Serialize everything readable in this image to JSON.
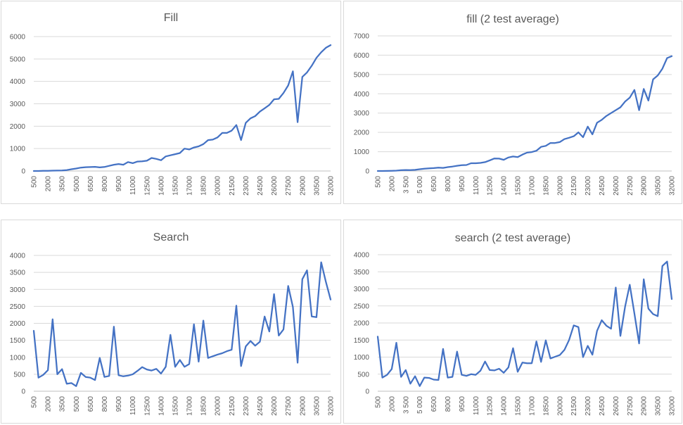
{
  "chart_data": [
    {
      "type": "line",
      "title": "Fill",
      "xlabel": "",
      "ylabel": "",
      "ylim": [
        0,
        6000
      ],
      "yticks": [
        0,
        1000,
        2000,
        3000,
        4000,
        5000,
        6000
      ],
      "ytick_labels": [
        "0",
        "1000",
        "2000",
        "3000",
        "4000",
        "5000",
        "6000"
      ],
      "xtick_labels": [
        "500",
        "2000",
        "3500",
        "5000",
        "6500",
        "8000",
        "9500",
        "11000",
        "12500",
        "14000",
        "15500",
        "17000",
        "18500",
        "20000",
        "21500",
        "23000",
        "24500",
        "26000",
        "27500",
        "29000",
        "30500",
        "32000"
      ],
      "x_start": 500,
      "x_step": 500,
      "grid": true,
      "legend": "none",
      "color": "#4472C4",
      "series": [
        {
          "values": [
            0,
            0,
            5,
            10,
            15,
            20,
            25,
            40,
            80,
            110,
            150,
            170,
            175,
            185,
            160,
            180,
            230,
            280,
            310,
            280,
            400,
            350,
            420,
            430,
            460,
            580,
            540,
            480,
            650,
            700,
            750,
            800,
            1000,
            960,
            1050,
            1100,
            1200,
            1380,
            1400,
            1500,
            1700,
            1700,
            1800,
            2050,
            1380,
            2150,
            2350,
            2450,
            2650,
            2800,
            2950,
            3200,
            3220,
            3480,
            3820,
            4450,
            2180,
            4200,
            4400,
            4700,
            5050,
            5300,
            5500,
            5620
          ]
        }
      ]
    },
    {
      "type": "line",
      "title": "fill (2 test average)",
      "xlabel": "",
      "ylabel": "",
      "ylim": [
        0,
        7000
      ],
      "yticks": [
        0,
        1000,
        2000,
        3000,
        4000,
        5000,
        6000,
        7000
      ],
      "ytick_labels": [
        "0",
        "1000",
        "2000",
        "3000",
        "4000",
        "5000",
        "6000",
        "7000"
      ],
      "xtick_labels": [
        "500",
        "2000",
        "3 500",
        "5 000",
        "6500",
        "8000",
        "9500",
        "11000",
        "12500",
        "14000",
        "15500",
        "17000",
        "18500",
        "20000",
        "21500",
        "23000",
        "24500",
        "26000",
        "27500",
        "29000",
        "30500",
        "32000"
      ],
      "x_start": 500,
      "x_step": 500,
      "grid": true,
      "legend": "none",
      "color": "#4472C4",
      "series": [
        {
          "values": [
            0,
            0,
            5,
            10,
            20,
            40,
            50,
            45,
            60,
            90,
            120,
            140,
            150,
            170,
            160,
            200,
            230,
            270,
            300,
            310,
            400,
            400,
            420,
            460,
            550,
            650,
            640,
            580,
            700,
            750,
            720,
            850,
            950,
            980,
            1050,
            1250,
            1300,
            1450,
            1450,
            1500,
            1650,
            1720,
            1800,
            2000,
            1750,
            2300,
            1900,
            2500,
            2650,
            2850,
            3000,
            3150,
            3300,
            3600,
            3800,
            4200,
            3150,
            4250,
            3650,
            4750,
            4950,
            5300,
            5850,
            5950
          ]
        }
      ]
    },
    {
      "type": "line",
      "title": "Search",
      "xlabel": "",
      "ylabel": "",
      "ylim": [
        0,
        4000
      ],
      "yticks": [
        0,
        500,
        1000,
        1500,
        2000,
        2500,
        3000,
        3500,
        4000
      ],
      "ytick_labels": [
        "0",
        "500",
        "1000",
        "1500",
        "2000",
        "2500",
        "3000",
        "3500",
        "4000"
      ],
      "xtick_labels": [
        "500",
        "2000",
        "3500",
        "5000",
        "6500",
        "8000",
        "9500",
        "11000",
        "12500",
        "14000",
        "15500",
        "17000",
        "18500",
        "20000",
        "21500",
        "23000",
        "24500",
        "26000",
        "27500",
        "29000",
        "30500",
        "32000"
      ],
      "x_start": 500,
      "x_step": 500,
      "grid": true,
      "legend": "none",
      "color": "#4472C4",
      "series": [
        {
          "values": [
            1780,
            400,
            480,
            620,
            2120,
            500,
            650,
            220,
            240,
            150,
            540,
            420,
            400,
            330,
            980,
            420,
            450,
            1900,
            470,
            440,
            460,
            500,
            600,
            710,
            640,
            610,
            660,
            520,
            720,
            1660,
            720,
            920,
            720,
            800,
            1970,
            870,
            2080,
            980,
            1030,
            1080,
            1120,
            1180,
            1220,
            2520,
            740,
            1320,
            1480,
            1340,
            1460,
            2200,
            1760,
            2860,
            1640,
            1820,
            3100,
            2480,
            840,
            3300,
            3560,
            2200,
            2180,
            3800,
            3220,
            2700
          ]
        }
      ]
    },
    {
      "type": "line",
      "title": "search (2 test average)",
      "xlabel": "",
      "ylabel": "",
      "ylim": [
        0,
        4000
      ],
      "yticks": [
        0,
        500,
        1000,
        1500,
        2000,
        2500,
        3000,
        3500,
        4000
      ],
      "ytick_labels": [
        "0",
        "500",
        "1000",
        "1500",
        "2000",
        "2500",
        "3000",
        "3500",
        "4000"
      ],
      "xtick_labels": [
        "500",
        "2000",
        "3 500",
        "5 000",
        "6500",
        "8000",
        "9500",
        "11000",
        "12500",
        "14000",
        "15500",
        "17000",
        "18500",
        "20000",
        "21500",
        "23000",
        "24500",
        "26000",
        "27500",
        "29000",
        "30500",
        "32000"
      ],
      "x_start": 500,
      "x_step": 500,
      "grid": true,
      "legend": "none",
      "color": "#4472C4",
      "series": [
        {
          "values": [
            1600,
            400,
            480,
            650,
            1420,
            420,
            620,
            220,
            440,
            150,
            400,
            390,
            340,
            330,
            1240,
            400,
            420,
            1160,
            480,
            450,
            500,
            480,
            600,
            870,
            620,
            610,
            660,
            540,
            700,
            1260,
            570,
            840,
            820,
            820,
            1460,
            860,
            1490,
            960,
            1010,
            1060,
            1210,
            1500,
            1930,
            1880,
            1000,
            1330,
            1070,
            1770,
            2080,
            1920,
            1830,
            3040,
            1620,
            2480,
            3120,
            2280,
            1400,
            3280,
            2420,
            2260,
            2200,
            3670,
            3800,
            2700
          ]
        }
      ]
    }
  ]
}
